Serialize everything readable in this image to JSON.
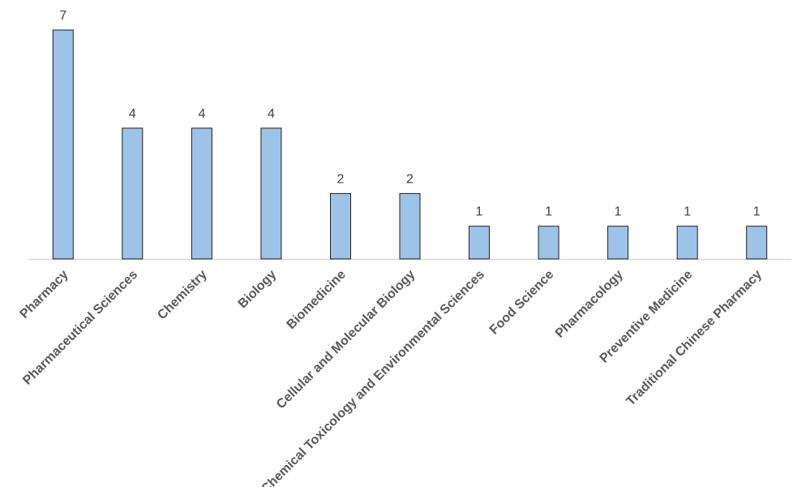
{
  "chart_data": {
    "type": "bar",
    "title": "",
    "xlabel": "",
    "ylabel": "",
    "categories": [
      "Pharmacy",
      "Pharmaceutical Sciences",
      "Chemistry",
      "Biology",
      "Biomedicine",
      "Cellular and Molecular Biology",
      "Chemical Toxicology and Environmental Sciences",
      "Food Science",
      "Pharmacology",
      "Preventive Medicine",
      "Traditional Chinese Pharmacy"
    ],
    "values": [
      7,
      4,
      4,
      4,
      2,
      2,
      1,
      1,
      1,
      1,
      1
    ],
    "ylim": [
      0,
      7
    ],
    "grid": false,
    "legend": "none",
    "data_labels": true,
    "colors": {
      "bar_fill": "#9dc3e6",
      "bar_stroke": "#1f1f1f",
      "axis": "#d9d9d9",
      "value_text": "#404040",
      "category_text": "#595959"
    }
  }
}
